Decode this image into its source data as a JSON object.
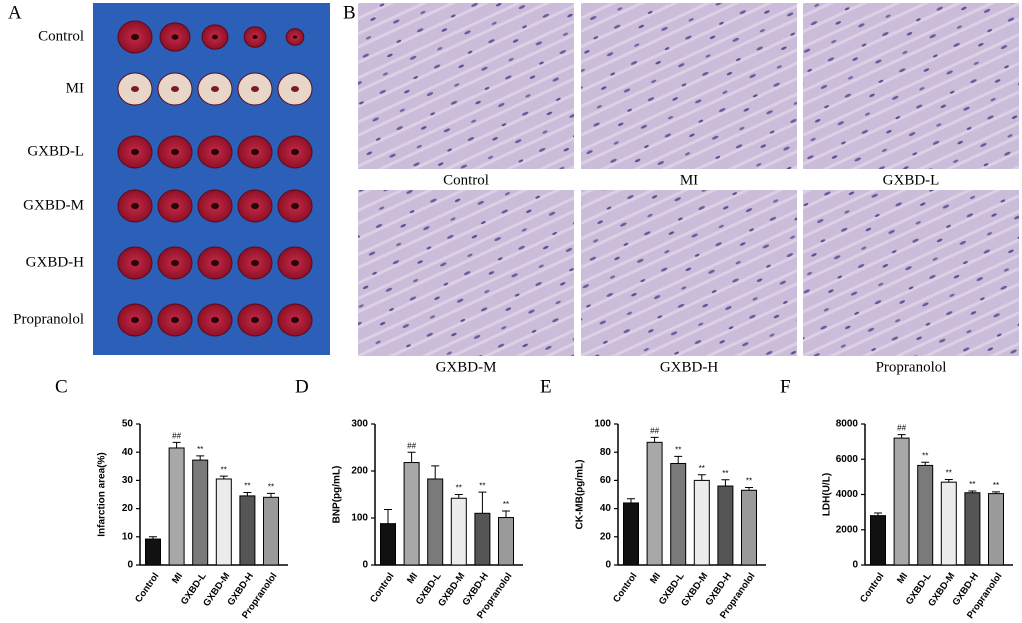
{
  "panel_a": {
    "letter": "A",
    "rows": [
      "Control",
      "MI",
      "GXBD-L",
      "GXBD-M",
      "GXBD-H",
      "Propranolol"
    ]
  },
  "panel_b": {
    "letter": "B",
    "labels": [
      "Control",
      "MI",
      "GXBD-L",
      "GXBD-M",
      "GXBD-H",
      "Propranolol"
    ]
  },
  "chart_data": [
    {
      "type": "bar",
      "letter": "C",
      "y_label": "Infarction area(%)",
      "categories": [
        "Control",
        "MI",
        "GXBD-L",
        "GXBD-M",
        "GXBD-H",
        "Propranolol"
      ],
      "values": [
        9.2,
        41.5,
        37.2,
        30.5,
        24.5,
        24
      ],
      "errors": [
        0.8,
        2,
        1.5,
        1,
        1.2,
        1.4
      ],
      "markers": [
        null,
        "##",
        "**",
        "**",
        "**",
        "**"
      ],
      "colors": [
        "#111111",
        "#a8a8a8",
        "#7a7a7a",
        "#ececec",
        "#555555",
        "#9a9a9a"
      ],
      "ylim": [
        0,
        50
      ],
      "yticks": [
        0,
        10,
        20,
        30,
        40,
        50
      ]
    },
    {
      "type": "bar",
      "letter": "D",
      "y_label": "BNP(pg/mL)",
      "categories": [
        "Control",
        "MI",
        "GXBD-L",
        "GXBD-M",
        "GXBD-H",
        "Propranolol"
      ],
      "values": [
        88,
        218,
        183,
        142,
        110,
        101
      ],
      "errors": [
        30,
        22,
        28,
        8,
        45,
        14
      ],
      "markers": [
        null,
        "##",
        null,
        "**",
        "**",
        "**"
      ],
      "colors": [
        "#111111",
        "#a8a8a8",
        "#7a7a7a",
        "#ececec",
        "#555555",
        "#9a9a9a"
      ],
      "ylim": [
        0,
        300
      ],
      "yticks": [
        0,
        100,
        200,
        300
      ]
    },
    {
      "type": "bar",
      "letter": "E",
      "y_label": "CK-MB(pg/mL)",
      "categories": [
        "Control",
        "MI",
        "GXBD-L",
        "GXBD-M",
        "GXBD-H",
        "Propranolol"
      ],
      "values": [
        44,
        87,
        72,
        60,
        56,
        53
      ],
      "errors": [
        3,
        3.5,
        5,
        4,
        4.5,
        2
      ],
      "markers": [
        null,
        "##",
        "**",
        "**",
        "**",
        "**"
      ],
      "colors": [
        "#111111",
        "#a8a8a8",
        "#7a7a7a",
        "#ececec",
        "#555555",
        "#9a9a9a"
      ],
      "ylim": [
        0,
        100
      ],
      "yticks": [
        0,
        20,
        40,
        60,
        80,
        100
      ]
    },
    {
      "type": "bar",
      "letter": "F",
      "y_label": "LDH(U/L)",
      "categories": [
        "Control",
        "MI",
        "GXBD-L",
        "GXBD-M",
        "GXBD-H",
        "Propranolol"
      ],
      "values": [
        2800,
        7200,
        5650,
        4700,
        4100,
        4050
      ],
      "errors": [
        150,
        200,
        180,
        150,
        100,
        100
      ],
      "markers": [
        null,
        "##",
        "**",
        "**",
        "**",
        "**"
      ],
      "colors": [
        "#111111",
        "#a8a8a8",
        "#7a7a7a",
        "#ececec",
        "#555555",
        "#9a9a9a"
      ],
      "ylim": [
        0,
        8000
      ],
      "yticks": [
        0,
        2000,
        4000,
        6000,
        8000
      ]
    }
  ]
}
